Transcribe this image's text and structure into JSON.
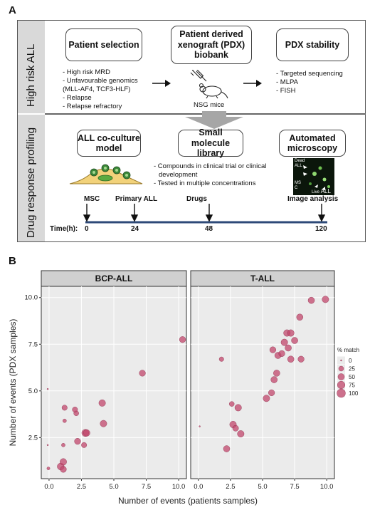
{
  "panel_a": {
    "letter": "A",
    "row1_label": "High risk ALL",
    "row2_label": "Drug response profiling",
    "boxes": {
      "patient_selection": "Patient selection",
      "pdx_biobank": "Patient derived xenograft (PDX) biobank",
      "pdx_stability": "PDX stability",
      "coculture": "ALL co-culture model",
      "library": "Small molecule library",
      "microscopy": "Automated microscopy"
    },
    "patient_selection_items": [
      "- High risk MRD",
      "- Unfavourable genomics",
      "(MLL-AF4, TCF3-HLF)",
      "- Relapse",
      "- Relapse refractory"
    ],
    "mouse_label": "NSG mice",
    "stability_items": [
      "- Targeted sequencing",
      "- MLPA",
      "- FISH"
    ],
    "library_items": [
      "- Compounds in clinical trial or clinical",
      "development",
      "- Tested in multiple concentrations"
    ],
    "micro_labels": {
      "dead": "Dead",
      "all": "ALL",
      "msc": "MS",
      "c": "C",
      "live": "Live",
      "live_all": "ALL"
    },
    "timeline": {
      "prefix": "Time(h):",
      "events": [
        {
          "label": "MSC",
          "time": "0"
        },
        {
          "label": "Primary ALL",
          "time": "24"
        },
        {
          "label": "Drugs",
          "time": "48"
        },
        {
          "label": "Image analysis",
          "time": "120"
        }
      ]
    }
  },
  "panel_b": {
    "letter": "B",
    "legend_title": "% match",
    "legend_items": [
      "0",
      "25",
      "50",
      "75",
      "100"
    ],
    "colors": {
      "point": "#c2476c",
      "facet_bg": "#ebebeb",
      "strip": "#d0d0d0",
      "band": "#d9d9d9"
    }
  },
  "chart_data": {
    "type": "scatter",
    "xlabel": "Number of events (patients samples)",
    "ylabel": "Number of events (PDX samples)",
    "xlim": [
      -0.6,
      10.6
    ],
    "ylim": [
      0.3,
      10.6
    ],
    "x_ticks": [
      "0.0",
      "2.5",
      "5.0",
      "7.5",
      "10.0"
    ],
    "y_ticks": [
      "2.5",
      "5.0",
      "7.5",
      "10.0"
    ],
    "facets": [
      {
        "name": "BCP-ALL",
        "points": [
          {
            "x": -0.1,
            "y": 5.1,
            "match": 0
          },
          {
            "x": -0.1,
            "y": 2.1,
            "match": 0
          },
          {
            "x": -0.05,
            "y": 0.85,
            "match": 5
          },
          {
            "x": 0.9,
            "y": 0.95,
            "match": 60
          },
          {
            "x": 1.1,
            "y": 0.8,
            "match": 45
          },
          {
            "x": 1.1,
            "y": 1.2,
            "match": 55
          },
          {
            "x": 1.1,
            "y": 2.1,
            "match": 10
          },
          {
            "x": 1.2,
            "y": 3.4,
            "match": 10
          },
          {
            "x": 1.2,
            "y": 4.1,
            "match": 30
          },
          {
            "x": 2.1,
            "y": 3.8,
            "match": 25
          },
          {
            "x": 2.0,
            "y": 4.0,
            "match": 30
          },
          {
            "x": 2.2,
            "y": 2.3,
            "match": 45
          },
          {
            "x": 2.7,
            "y": 2.1,
            "match": 30
          },
          {
            "x": 2.8,
            "y": 2.75,
            "match": 65
          },
          {
            "x": 2.9,
            "y": 2.75,
            "match": 55
          },
          {
            "x": 4.1,
            "y": 4.35,
            "match": 55
          },
          {
            "x": 4.2,
            "y": 3.25,
            "match": 55
          },
          {
            "x": 7.2,
            "y": 5.95,
            "match": 45
          },
          {
            "x": 10.3,
            "y": 7.75,
            "match": 45
          }
        ]
      },
      {
        "name": "T-ALL",
        "points": [
          {
            "x": 0.1,
            "y": 3.1,
            "match": 0
          },
          {
            "x": 1.8,
            "y": 6.7,
            "match": 20
          },
          {
            "x": 2.2,
            "y": 1.9,
            "match": 50
          },
          {
            "x": 2.6,
            "y": 4.3,
            "match": 25
          },
          {
            "x": 2.7,
            "y": 3.2,
            "match": 55
          },
          {
            "x": 2.9,
            "y": 3.0,
            "match": 40
          },
          {
            "x": 3.1,
            "y": 4.1,
            "match": 55
          },
          {
            "x": 3.3,
            "y": 2.7,
            "match": 55
          },
          {
            "x": 5.3,
            "y": 4.6,
            "match": 55
          },
          {
            "x": 5.7,
            "y": 4.9,
            "match": 45
          },
          {
            "x": 5.9,
            "y": 5.6,
            "match": 50
          },
          {
            "x": 5.8,
            "y": 7.2,
            "match": 45
          },
          {
            "x": 6.1,
            "y": 5.95,
            "match": 50
          },
          {
            "x": 6.2,
            "y": 6.9,
            "match": 50
          },
          {
            "x": 6.5,
            "y": 7.0,
            "match": 45
          },
          {
            "x": 6.7,
            "y": 7.6,
            "match": 55
          },
          {
            "x": 6.9,
            "y": 8.1,
            "match": 55
          },
          {
            "x": 7.0,
            "y": 7.3,
            "match": 50
          },
          {
            "x": 7.2,
            "y": 6.7,
            "match": 50
          },
          {
            "x": 7.2,
            "y": 8.1,
            "match": 55
          },
          {
            "x": 7.5,
            "y": 7.7,
            "match": 50
          },
          {
            "x": 7.9,
            "y": 8.95,
            "match": 50
          },
          {
            "x": 8.0,
            "y": 6.7,
            "match": 45
          },
          {
            "x": 8.8,
            "y": 9.85,
            "match": 50
          },
          {
            "x": 9.9,
            "y": 9.9,
            "match": 55
          }
        ]
      }
    ]
  }
}
